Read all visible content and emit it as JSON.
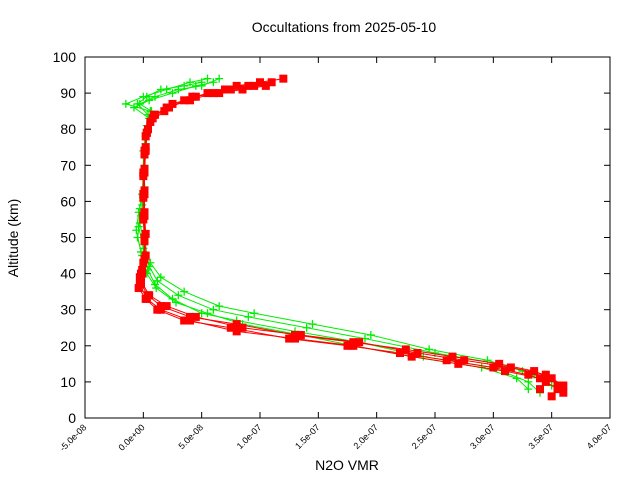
{
  "chart_data": {
    "type": "line",
    "title": "Occultations from 2025-05-10",
    "xlabel": "N2O VMR",
    "ylabel": "Altitude (km)",
    "xlim": [
      -5e-08,
      4e-07
    ],
    "ylim": [
      0,
      100
    ],
    "grid": false,
    "x_ticks": [
      {
        "v": -5e-08,
        "label": "-5.0e-08"
      },
      {
        "v": 0,
        "label": "0.0e+00"
      },
      {
        "v": 5e-08,
        "label": "5.0e-08"
      },
      {
        "v": 1e-07,
        "label": "1.0e-07"
      },
      {
        "v": 1.5e-07,
        "label": "1.5e-07"
      },
      {
        "v": 2e-07,
        "label": "2.0e-07"
      },
      {
        "v": 2.5e-07,
        "label": "2.5e-07"
      },
      {
        "v": 3e-07,
        "label": "3.0e-07"
      },
      {
        "v": 3.5e-07,
        "label": "3.5e-07"
      },
      {
        "v": 4e-07,
        "label": "4.0e-07"
      }
    ],
    "y_ticks": [
      {
        "v": 0,
        "label": "0"
      },
      {
        "v": 10,
        "label": "10"
      },
      {
        "v": 20,
        "label": "20"
      },
      {
        "v": 30,
        "label": "30"
      },
      {
        "v": 40,
        "label": "40"
      },
      {
        "v": 50,
        "label": "50"
      },
      {
        "v": 60,
        "label": "60"
      },
      {
        "v": 70,
        "label": "70"
      },
      {
        "v": 80,
        "label": "80"
      },
      {
        "v": 90,
        "label": "90"
      },
      {
        "v": 100,
        "label": "100"
      }
    ],
    "series": [
      {
        "color": "#00ee00",
        "marker": "plus",
        "profiles": [
          [
            [
              3.4e-07,
              7
            ],
            [
              3.3e-07,
              10
            ],
            [
              3e-07,
              14
            ],
            [
              2.4e-07,
              17
            ],
            [
              1.85e-07,
              21
            ],
            [
              1.3e-07,
              24
            ],
            [
              8e-08,
              27
            ],
            [
              5e-08,
              29
            ],
            [
              2.5e-08,
              33
            ],
            [
              1e-08,
              37
            ],
            [
              4e-09,
              41
            ],
            [
              -2e-09,
              46
            ],
            [
              -6e-09,
              52
            ],
            [
              -4e-09,
              57
            ],
            [
              -1e-09,
              62
            ],
            [
              0,
              68
            ],
            [
              0,
              74
            ],
            [
              2e-09,
              79
            ],
            [
              4e-09,
              84
            ],
            [
              -5e-09,
              87
            ],
            [
              3e-09,
              89
            ],
            [
              1.5e-08,
              91
            ],
            [
              3.5e-08,
              92
            ],
            [
              5e-08,
              93
            ]
          ],
          [
            [
              3.5e-07,
              9
            ],
            [
              3.35e-07,
              12
            ],
            [
              3.05e-07,
              15
            ],
            [
              2.5e-07,
              18
            ],
            [
              1.9e-07,
              22
            ],
            [
              1.4e-07,
              25
            ],
            [
              9e-08,
              28
            ],
            [
              6e-08,
              30
            ],
            [
              3e-08,
              34
            ],
            [
              1.2e-08,
              38
            ],
            [
              5e-09,
              42
            ],
            [
              0,
              47
            ],
            [
              -4e-09,
              53
            ],
            [
              -3e-09,
              58
            ],
            [
              0,
              63
            ],
            [
              1e-09,
              69
            ],
            [
              1e-09,
              75
            ],
            [
              3e-09,
              80
            ],
            [
              6e-09,
              85
            ],
            [
              -1.5e-08,
              87
            ],
            [
              0,
              89
            ],
            [
              2e-08,
              91
            ],
            [
              4e-08,
              93
            ],
            [
              5.5e-08,
              94
            ]
          ],
          [
            [
              3.3e-07,
              8
            ],
            [
              3.2e-07,
              11
            ],
            [
              2.9e-07,
              14
            ],
            [
              2.3e-07,
              17
            ],
            [
              1.8e-07,
              20
            ],
            [
              1.35e-07,
              23
            ],
            [
              8.5e-08,
              26
            ],
            [
              5.5e-08,
              29
            ],
            [
              2.8e-08,
              32
            ],
            [
              1.1e-08,
              36
            ],
            [
              3e-09,
              40
            ],
            [
              -1e-09,
              45
            ],
            [
              -5e-09,
              50
            ],
            [
              -2e-09,
              56
            ],
            [
              0,
              61
            ],
            [
              0,
              67
            ],
            [
              1e-09,
              73
            ],
            [
              2e-09,
              78
            ],
            [
              5e-09,
              83
            ],
            [
              -8e-09,
              86
            ],
            [
              5e-09,
              88
            ],
            [
              2.5e-08,
              90
            ],
            [
              4.5e-08,
              92
            ],
            [
              6e-08,
              93
            ]
          ],
          [
            [
              3.45e-07,
              10
            ],
            [
              3.25e-07,
              13
            ],
            [
              2.95e-07,
              16
            ],
            [
              2.45e-07,
              19
            ],
            [
              1.95e-07,
              23
            ],
            [
              1.45e-07,
              26
            ],
            [
              9.5e-08,
              29
            ],
            [
              6.5e-08,
              31
            ],
            [
              3.5e-08,
              35
            ],
            [
              1.5e-08,
              39
            ],
            [
              6e-09,
              43
            ],
            [
              1e-09,
              48
            ],
            [
              -3e-09,
              54
            ],
            [
              -1e-09,
              59
            ],
            [
              1e-09,
              64
            ],
            [
              1e-09,
              70
            ],
            [
              2e-09,
              76
            ],
            [
              3e-09,
              81
            ],
            [
              7e-09,
              85
            ],
            [
              -3e-09,
              87
            ],
            [
              1e-08,
              89
            ],
            [
              3e-08,
              91
            ],
            [
              5e-08,
              92
            ],
            [
              6.5e-08,
              94
            ]
          ]
        ]
      },
      {
        "color": "#ff0000",
        "marker": "square",
        "profiles": [
          [
            [
              3.5e-07,
              6
            ],
            [
              3.55e-07,
              8
            ],
            [
              3.4e-07,
              11
            ],
            [
              3.1e-07,
              13
            ],
            [
              2.7e-07,
              15
            ],
            [
              2.3e-07,
              17
            ],
            [
              1.8e-07,
              20
            ],
            [
              1.3e-07,
              22
            ],
            [
              8e-08,
              24
            ],
            [
              4e-08,
              27
            ],
            [
              1.5e-08,
              30
            ],
            [
              3e-09,
              33
            ],
            [
              -3e-09,
              37
            ],
            [
              -2e-09,
              40
            ],
            [
              1e-09,
              44
            ],
            [
              1e-09,
              50
            ],
            [
              0,
              56
            ],
            [
              0,
              62
            ],
            [
              0,
              68
            ],
            [
              1e-09,
              74
            ],
            [
              3e-09,
              79
            ],
            [
              8e-09,
              83
            ],
            [
              2e-08,
              86
            ],
            [
              4e-08,
              88
            ],
            [
              6e-08,
              90
            ],
            [
              8e-08,
              92
            ],
            [
              1e-07,
              93
            ],
            [
              1.2e-07,
              94
            ]
          ],
          [
            [
              3.6e-07,
              7
            ],
            [
              3.6e-07,
              9
            ],
            [
              3.45e-07,
              12
            ],
            [
              3.15e-07,
              14
            ],
            [
              2.75e-07,
              16
            ],
            [
              2.35e-07,
              18
            ],
            [
              1.85e-07,
              21
            ],
            [
              1.35e-07,
              23
            ],
            [
              8.5e-08,
              25
            ],
            [
              4.5e-08,
              28
            ],
            [
              2e-08,
              31
            ],
            [
              5e-09,
              34
            ],
            [
              -2e-09,
              38
            ],
            [
              -1e-09,
              41
            ],
            [
              2e-09,
              45
            ],
            [
              2e-09,
              51
            ],
            [
              1e-09,
              57
            ],
            [
              1e-09,
              63
            ],
            [
              1e-09,
              69
            ],
            [
              2e-09,
              75
            ],
            [
              4e-09,
              80
            ],
            [
              1e-08,
              84
            ],
            [
              2.5e-08,
              87
            ],
            [
              4.5e-08,
              89
            ],
            [
              7e-08,
              91
            ],
            [
              9e-08,
              92
            ],
            [
              1.1e-07,
              93
            ]
          ],
          [
            [
              3.4e-07,
              8
            ],
            [
              3.45e-07,
              10
            ],
            [
              3.3e-07,
              12
            ],
            [
              3e-07,
              14
            ],
            [
              2.6e-07,
              16
            ],
            [
              2.2e-07,
              18
            ],
            [
              1.75e-07,
              20
            ],
            [
              1.25e-07,
              22
            ],
            [
              7.5e-08,
              25
            ],
            [
              3.5e-08,
              27
            ],
            [
              1.2e-08,
              30
            ],
            [
              2e-09,
              33
            ],
            [
              -4e-09,
              36
            ],
            [
              -3e-09,
              39
            ],
            [
              0,
              43
            ],
            [
              1e-09,
              49
            ],
            [
              0,
              55
            ],
            [
              0,
              61
            ],
            [
              0,
              67
            ],
            [
              1e-09,
              73
            ],
            [
              2e-09,
              78
            ],
            [
              6e-09,
              82
            ],
            [
              1.8e-08,
              85
            ],
            [
              3.5e-08,
              88
            ],
            [
              5.5e-08,
              90
            ],
            [
              7.5e-08,
              91
            ],
            [
              9.5e-08,
              92
            ]
          ],
          [
            [
              3.55e-07,
              9
            ],
            [
              3.5e-07,
              11
            ],
            [
              3.35e-07,
              13
            ],
            [
              3.05e-07,
              15
            ],
            [
              2.65e-07,
              17
            ],
            [
              2.25e-07,
              19
            ],
            [
              1.8e-07,
              21
            ],
            [
              1.3e-07,
              23
            ],
            [
              8e-08,
              26
            ],
            [
              4e-08,
              28
            ],
            [
              1.5e-08,
              31
            ],
            [
              4e-09,
              34
            ],
            [
              -2e-09,
              37
            ],
            [
              -1e-09,
              40
            ],
            [
              1e-09,
              44
            ],
            [
              1e-09,
              50
            ],
            [
              1e-09,
              56
            ],
            [
              1e-09,
              62
            ],
            [
              1e-09,
              68
            ],
            [
              2e-09,
              74
            ],
            [
              3e-09,
              79
            ],
            [
              9e-09,
              84
            ],
            [
              2.2e-08,
              86
            ],
            [
              4.2e-08,
              89
            ],
            [
              6.5e-08,
              90
            ],
            [
              8.5e-08,
              91
            ],
            [
              1.05e-07,
              92
            ]
          ]
        ]
      }
    ]
  }
}
